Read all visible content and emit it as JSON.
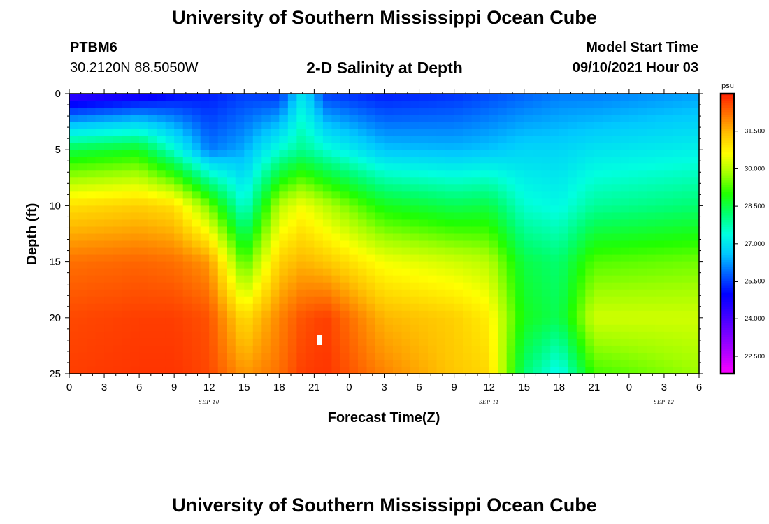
{
  "header": {
    "title": "University of Southern Mississippi Ocean Cube",
    "station_id": "PTBM6",
    "station_location": "30.2120N  88.5050W",
    "start_label": "Model Start Time",
    "start_value": "09/10/2021 Hour 03"
  },
  "footer": {
    "title": "University of Southern Mississippi Ocean Cube"
  },
  "chart_data": {
    "type": "heatmap",
    "title": "2-D Salinity at Depth",
    "xlabel": "Forecast Time(Z)",
    "ylabel": "Depth (ft)",
    "x_range_hours": [
      0,
      54
    ],
    "ylim": [
      25,
      0
    ],
    "x_tick_labels": [
      "0",
      "3",
      "6",
      "9",
      "12",
      "15",
      "18",
      "21",
      "0",
      "3",
      "6",
      "9",
      "12",
      "15",
      "18",
      "21",
      "0",
      "3",
      "6"
    ],
    "y_ticks": [
      0,
      5,
      10,
      15,
      20,
      25
    ],
    "date_labels": [
      {
        "text": "SEP 10",
        "hour": 12
      },
      {
        "text": "SEP 11",
        "hour": 36
      },
      {
        "text": "SEP 12",
        "hour": 51
      }
    ],
    "colorbar": {
      "unit": "psu",
      "range": [
        21.8,
        33.0
      ],
      "tick_values": [
        22.5,
        24.0,
        25.5,
        27.0,
        28.5,
        30.0,
        31.5
      ],
      "tick_labels": [
        "22.500",
        "24.000",
        "25.500",
        "27.000",
        "28.500",
        "30.000",
        "31.500"
      ],
      "colors": [
        "#ff00ff",
        "#b800ff",
        "#7a00ff",
        "#3a00ff",
        "#0000ff",
        "#0060ff",
        "#00c8ff",
        "#00ffe0",
        "#00ff70",
        "#20ff00",
        "#a0ff00",
        "#ffff00",
        "#ffc000",
        "#ff7000",
        "#ff2000"
      ]
    },
    "depth_levels_ft": [
      0,
      5,
      10,
      15,
      20,
      25
    ],
    "salinity_psu": [
      {
        "hour": 0,
        "values": [
          24.2,
          28.5,
          31.0,
          32.2,
          32.6,
          32.7
        ]
      },
      {
        "hour": 6,
        "values": [
          24.6,
          28.8,
          31.2,
          32.3,
          32.7,
          32.8
        ]
      },
      {
        "hour": 9,
        "values": [
          25.0,
          27.5,
          31.0,
          32.2,
          32.7,
          32.8
        ]
      },
      {
        "hour": 12,
        "values": [
          25.2,
          26.0,
          29.5,
          31.8,
          32.5,
          32.6
        ]
      },
      {
        "hour": 15,
        "values": [
          25.5,
          26.4,
          27.4,
          29.2,
          31.0,
          31.8
        ]
      },
      {
        "hour": 18,
        "values": [
          25.4,
          27.5,
          30.0,
          31.2,
          32.0,
          32.2
        ]
      },
      {
        "hour": 20,
        "values": [
          27.0,
          28.0,
          30.5,
          31.5,
          32.5,
          32.7
        ]
      },
      {
        "hour": 22,
        "values": [
          25.5,
          27.5,
          30.0,
          31.3,
          32.7,
          32.8
        ]
      },
      {
        "hour": 27,
        "values": [
          25.2,
          26.6,
          28.8,
          30.5,
          31.5,
          32.0
        ]
      },
      {
        "hour": 33,
        "values": [
          25.4,
          26.5,
          28.4,
          30.2,
          31.2,
          31.3
        ]
      },
      {
        "hour": 36,
        "values": [
          25.6,
          26.6,
          28.5,
          30.0,
          30.8,
          31.1
        ]
      },
      {
        "hour": 39,
        "values": [
          25.8,
          26.8,
          27.5,
          28.5,
          28.8,
          28.2
        ]
      },
      {
        "hour": 42,
        "values": [
          26.0,
          26.8,
          27.3,
          28.2,
          28.4,
          27.2
        ]
      },
      {
        "hour": 45,
        "values": [
          26.0,
          27.0,
          27.9,
          29.3,
          30.2,
          29.2
        ]
      },
      {
        "hour": 54,
        "values": [
          26.3,
          27.2,
          28.2,
          29.5,
          30.2,
          29.8
        ]
      }
    ]
  }
}
